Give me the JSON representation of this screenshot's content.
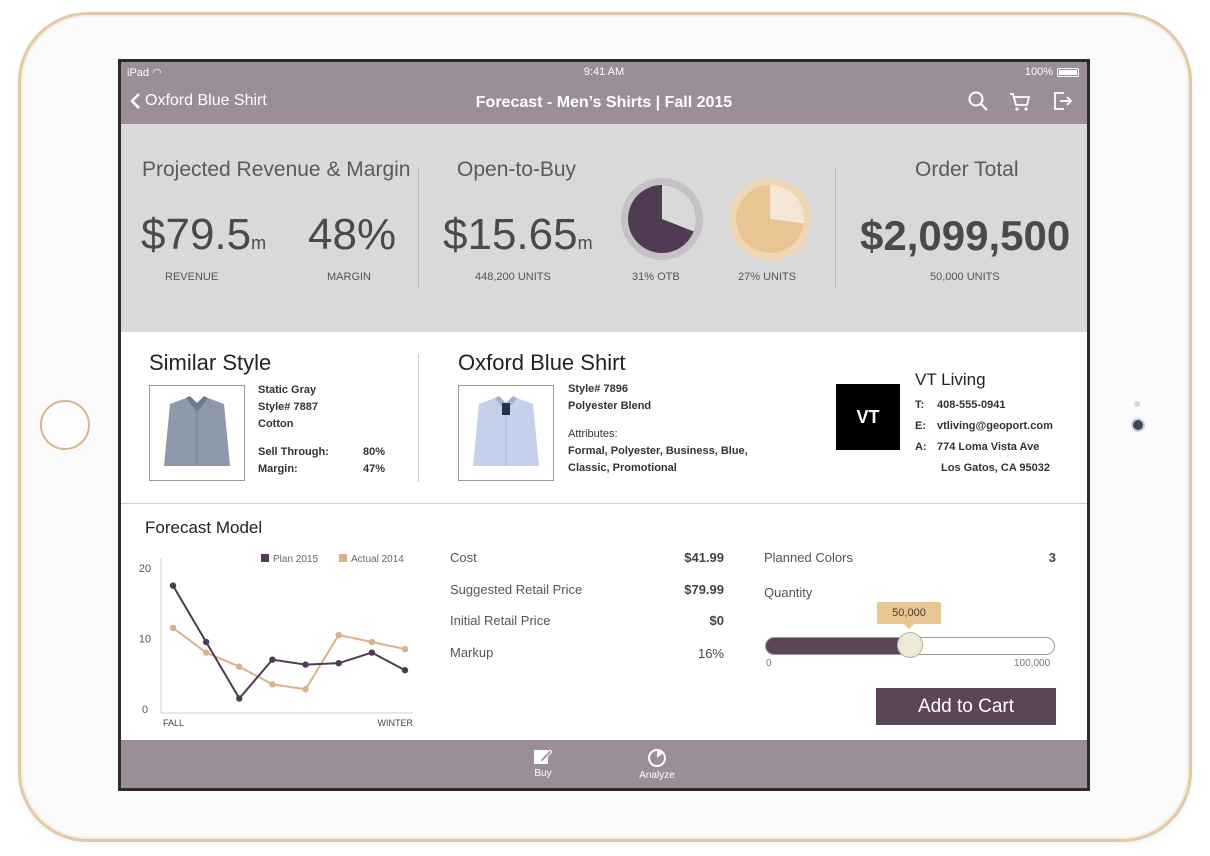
{
  "status": {
    "device": "iPad",
    "time": "9:41 AM",
    "battery": "100%"
  },
  "nav": {
    "back_label": "Oxford Blue Shirt",
    "title": "Forecast - Men’s Shirts | Fall 2015",
    "icons": [
      "search-icon",
      "cart-icon",
      "logout-icon"
    ]
  },
  "summary": {
    "revenue_title": "Projected Revenue & Margin",
    "revenue_value": "$79.5",
    "revenue_unit": "m",
    "revenue_caption": "REVENUE",
    "margin_value": "48%",
    "margin_caption": "MARGIN",
    "otb_title": "Open-to-Buy",
    "otb_value": "$15.65",
    "otb_unit": "m",
    "otb_caption": "448,200 UNITS",
    "otb_pie_caption": "31% OTB",
    "units_pie_caption": "27% UNITS",
    "otb_pct": 31,
    "units_pct": 27,
    "order_title": "Order Total",
    "order_value": "$2,099,500",
    "order_caption": "50,000 UNITS"
  },
  "similar": {
    "title": "Similar Style",
    "name": "Static Gray",
    "style": "Style# 7887",
    "fabric": "Cotton",
    "sell_label": "Sell Through:",
    "sell_value": "80%",
    "margin_label": "Margin:",
    "margin_value": "47%"
  },
  "product": {
    "title": "Oxford Blue Shirt",
    "style": "Style# 7896",
    "fabric": "Polyester Blend",
    "attr_label": "Attributes:",
    "attr_line1": "Formal, Polyester, Business, Blue,",
    "attr_line2": "Classic, Promotional"
  },
  "vendor": {
    "logo": "VT",
    "name": "VT Living",
    "phone_key": "T:",
    "phone": "408-555-0941",
    "email_key": "E:",
    "email": "vtliving@geoport.com",
    "addr_key": "A:",
    "addr1": "774 Loma Vista Ave",
    "addr2": "Los Gatos, CA 95032"
  },
  "forecast": {
    "title": "Forecast Model",
    "cost_label": "Cost",
    "cost": "$41.99",
    "srp_label": "Suggested Retail Price",
    "srp": "$79.99",
    "irp_label": "Initial Retail Price",
    "irp": "$0",
    "markup_label": "Markup",
    "markup": "16%",
    "colors_label": "Planned Colors",
    "colors": "3",
    "qty_label": "Quantity",
    "qty_value": "50,000",
    "qty_min": "0",
    "qty_max": "100,000",
    "qty_fraction": 0.5,
    "add_label": "Add to Cart"
  },
  "chart_data": {
    "type": "line",
    "x": [
      1,
      2,
      3,
      4,
      5,
      6,
      7,
      8
    ],
    "xlabels": [
      "FALL",
      "WINTER"
    ],
    "yticks": [
      "20",
      "10",
      "0"
    ],
    "ylim": [
      0,
      20
    ],
    "series": [
      {
        "name": "Plan 2015",
        "color": "#4e3b52",
        "values": [
          17.5,
          9.5,
          1.5,
          7,
          6.3,
          6.5,
          8,
          5.5
        ]
      },
      {
        "name": "Actual 2014",
        "color": "#d8b387",
        "values": [
          11.5,
          8,
          6,
          3.5,
          2.8,
          10.5,
          9.5,
          8.5
        ]
      }
    ]
  },
  "tabs": {
    "buy": "Buy",
    "analyze": "Analyze"
  }
}
